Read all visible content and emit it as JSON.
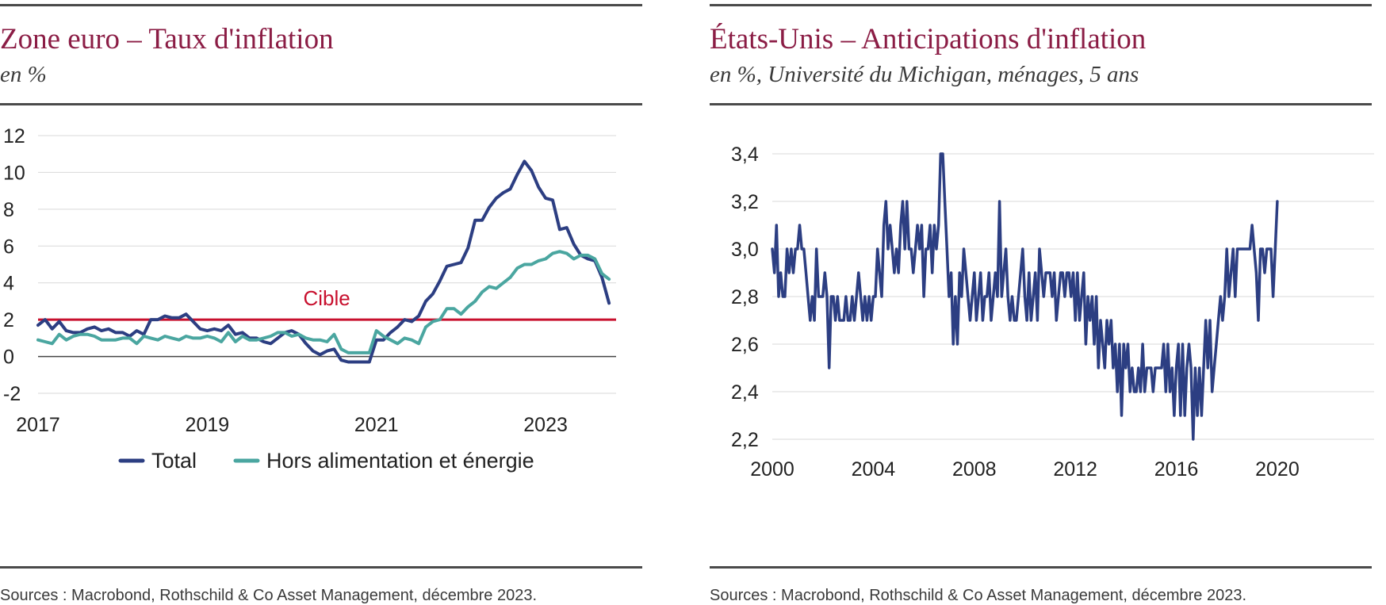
{
  "colors": {
    "title": "#8b1d45",
    "total": "#2c3e82",
    "core": "#4aa6a0",
    "target": "#c8102e",
    "grid": "#d9d9d9",
    "axis": "#444444"
  },
  "left": {
    "title": "Zone euro – Taux d'inflation",
    "subtitle": "en %",
    "source": "Sources : Macrobond, Rothschild & Co Asset Management, décembre 2023.",
    "target_label": "Cible",
    "legend": {
      "total": "Total",
      "core": "Hors alimentation et énergie"
    }
  },
  "right": {
    "title": "États-Unis – Anticipations d'inflation",
    "subtitle": "en %, Université du Michigan, ménages, 5 ans",
    "source": "Sources : Macrobond, Rothschild & Co Asset Management, décembre 2023."
  },
  "chart_data": [
    {
      "type": "line",
      "title": "Zone euro – Taux d'inflation",
      "subtitle": "en %",
      "xlabel": "",
      "ylabel": "",
      "x_axis": "date",
      "xlim": [
        "2017-01",
        "2023-11"
      ],
      "x_ticks": [
        "2017",
        "2019",
        "2021",
        "2023"
      ],
      "ylim": [
        -2,
        12
      ],
      "y_ticks": [
        -2,
        0,
        2,
        4,
        6,
        8,
        10,
        12
      ],
      "grid": "horizontal",
      "legend_position": "bottom",
      "reference_lines": [
        {
          "label": "Cible",
          "value": 2
        }
      ],
      "series": [
        {
          "name": "Total",
          "x_start": "2017-01",
          "frequency": "monthly",
          "values": [
            1.7,
            2.0,
            1.5,
            1.9,
            1.4,
            1.3,
            1.3,
            1.5,
            1.6,
            1.4,
            1.5,
            1.3,
            1.3,
            1.1,
            1.4,
            1.2,
            2.0,
            2.0,
            2.2,
            2.1,
            2.1,
            2.3,
            1.9,
            1.5,
            1.4,
            1.5,
            1.4,
            1.7,
            1.2,
            1.3,
            1.0,
            1.0,
            0.8,
            0.7,
            1.0,
            1.3,
            1.4,
            1.2,
            0.7,
            0.3,
            0.1,
            0.3,
            0.4,
            -0.2,
            -0.3,
            -0.3,
            -0.3,
            -0.3,
            0.9,
            0.9,
            1.3,
            1.6,
            2.0,
            1.9,
            2.2,
            3.0,
            3.4,
            4.1,
            4.9,
            5.0,
            5.1,
            5.9,
            7.4,
            7.4,
            8.1,
            8.6,
            8.9,
            9.1,
            9.9,
            10.6,
            10.1,
            9.2,
            8.6,
            8.5,
            6.9,
            7.0,
            6.1,
            5.5,
            5.3,
            5.2,
            4.3,
            2.9
          ]
        },
        {
          "name": "Hors alimentation et énergie",
          "x_start": "2017-01",
          "frequency": "monthly",
          "values": [
            0.9,
            0.8,
            0.7,
            1.2,
            0.9,
            1.1,
            1.2,
            1.2,
            1.1,
            0.9,
            0.9,
            0.9,
            1.0,
            1.0,
            0.7,
            1.1,
            1.0,
            0.9,
            1.1,
            1.0,
            0.9,
            1.1,
            1.0,
            1.0,
            1.1,
            1.0,
            0.8,
            1.3,
            0.8,
            1.1,
            0.9,
            0.9,
            1.0,
            1.1,
            1.3,
            1.3,
            1.1,
            1.2,
            1.0,
            0.9,
            0.9,
            0.8,
            1.2,
            0.4,
            0.2,
            0.2,
            0.2,
            0.2,
            1.4,
            1.1,
            0.9,
            0.7,
            1.0,
            0.9,
            0.7,
            1.6,
            1.9,
            2.0,
            2.6,
            2.6,
            2.3,
            2.7,
            3.0,
            3.5,
            3.8,
            3.7,
            4.0,
            4.3,
            4.8,
            5.0,
            5.0,
            5.2,
            5.3,
            5.6,
            5.7,
            5.6,
            5.3,
            5.5,
            5.5,
            5.3,
            4.5,
            4.2
          ]
        }
      ]
    },
    {
      "type": "line",
      "title": "États-Unis – Anticipations d'inflation",
      "subtitle": "en %, Université du Michigan, ménages, 5 ans",
      "xlabel": "",
      "ylabel": "",
      "x_axis": "date",
      "xlim": [
        "2000-01",
        "2023-11"
      ],
      "x_ticks": [
        "2000",
        "2004",
        "2008",
        "2012",
        "2016",
        "2020"
      ],
      "ylim": [
        2.2,
        3.4
      ],
      "y_ticks": [
        "2,2",
        "2,4",
        "2,6",
        "2,8",
        "3,0",
        "3,2",
        "3,4"
      ],
      "grid": "horizontal",
      "series": [
        {
          "x_start": "2000-01",
          "frequency": "monthly",
          "values": [
            3.0,
            2.9,
            3.1,
            2.8,
            2.9,
            2.8,
            2.8,
            3.0,
            2.9,
            3.0,
            2.9,
            3.0,
            3.0,
            3.1,
            3.0,
            3.0,
            2.9,
            2.8,
            2.7,
            2.8,
            2.7,
            3.0,
            2.8,
            2.8,
            2.8,
            2.9,
            2.8,
            2.5,
            2.8,
            2.8,
            2.7,
            2.8,
            2.7,
            2.7,
            2.7,
            2.8,
            2.7,
            2.7,
            2.8,
            2.7,
            2.8,
            2.9,
            2.8,
            2.7,
            2.8,
            2.7,
            2.8,
            2.7,
            2.8,
            2.8,
            3.0,
            2.9,
            2.8,
            3.1,
            3.2,
            3.0,
            3.1,
            3.0,
            2.9,
            3.0,
            2.9,
            3.1,
            3.2,
            3.0,
            3.2,
            3.0,
            3.0,
            2.9,
            3.0,
            3.1,
            3.0,
            3.1,
            2.8,
            3.0,
            3.0,
            3.1,
            2.9,
            3.1,
            3.0,
            3.1,
            3.4,
            3.4,
            3.2,
            3.0,
            2.8,
            2.9,
            2.6,
            2.8,
            2.6,
            2.9,
            2.8,
            3.0,
            2.9,
            2.8,
            2.7,
            2.8,
            2.9,
            2.7,
            2.8,
            2.9,
            2.7,
            2.8,
            2.8,
            2.9,
            2.7,
            2.8,
            2.9,
            2.8,
            3.2,
            2.8,
            2.9,
            3.0,
            2.8,
            2.7,
            2.8,
            2.7,
            2.7,
            2.8,
            2.9,
            3.0,
            2.8,
            2.7,
            2.9,
            2.7,
            2.8,
            2.9,
            2.7,
            3.0,
            2.9,
            2.8,
            2.9,
            2.9,
            2.9,
            2.8,
            2.9,
            2.7,
            2.8,
            2.9,
            2.9,
            2.8,
            2.9,
            2.9,
            2.8,
            2.9,
            2.7,
            2.9,
            2.7,
            2.8,
            2.9,
            2.6,
            2.8,
            2.7,
            2.8,
            2.6,
            2.8,
            2.5,
            2.7,
            2.6,
            2.5,
            2.7,
            2.6,
            2.7,
            2.5,
            2.6,
            2.4,
            2.6,
            2.3,
            2.6,
            2.5,
            2.6,
            2.4,
            2.5,
            2.4,
            2.4,
            2.5,
            2.4,
            2.6,
            2.4,
            2.5,
            2.5,
            2.5,
            2.4,
            2.5,
            2.5,
            2.5,
            2.5,
            2.6,
            2.4,
            2.6,
            2.4,
            2.5,
            2.3,
            2.5,
            2.6,
            2.3,
            2.6,
            2.3,
            2.5,
            2.6,
            2.5,
            2.2,
            2.5,
            2.3,
            2.5,
            2.3,
            2.5,
            2.7,
            2.5,
            2.7,
            2.4,
            2.5,
            2.6,
            2.7,
            2.8,
            2.7,
            2.8,
            3.0,
            2.8,
            2.9,
            3.0,
            2.8,
            3.0,
            3.0,
            3.0,
            3.0,
            3.0,
            3.0,
            3.0,
            3.1,
            3.0,
            2.9,
            2.7,
            3.0,
            3.0,
            2.9,
            3.0,
            3.0,
            3.0,
            2.8,
            3.0,
            3.2
          ]
        }
      ]
    }
  ]
}
